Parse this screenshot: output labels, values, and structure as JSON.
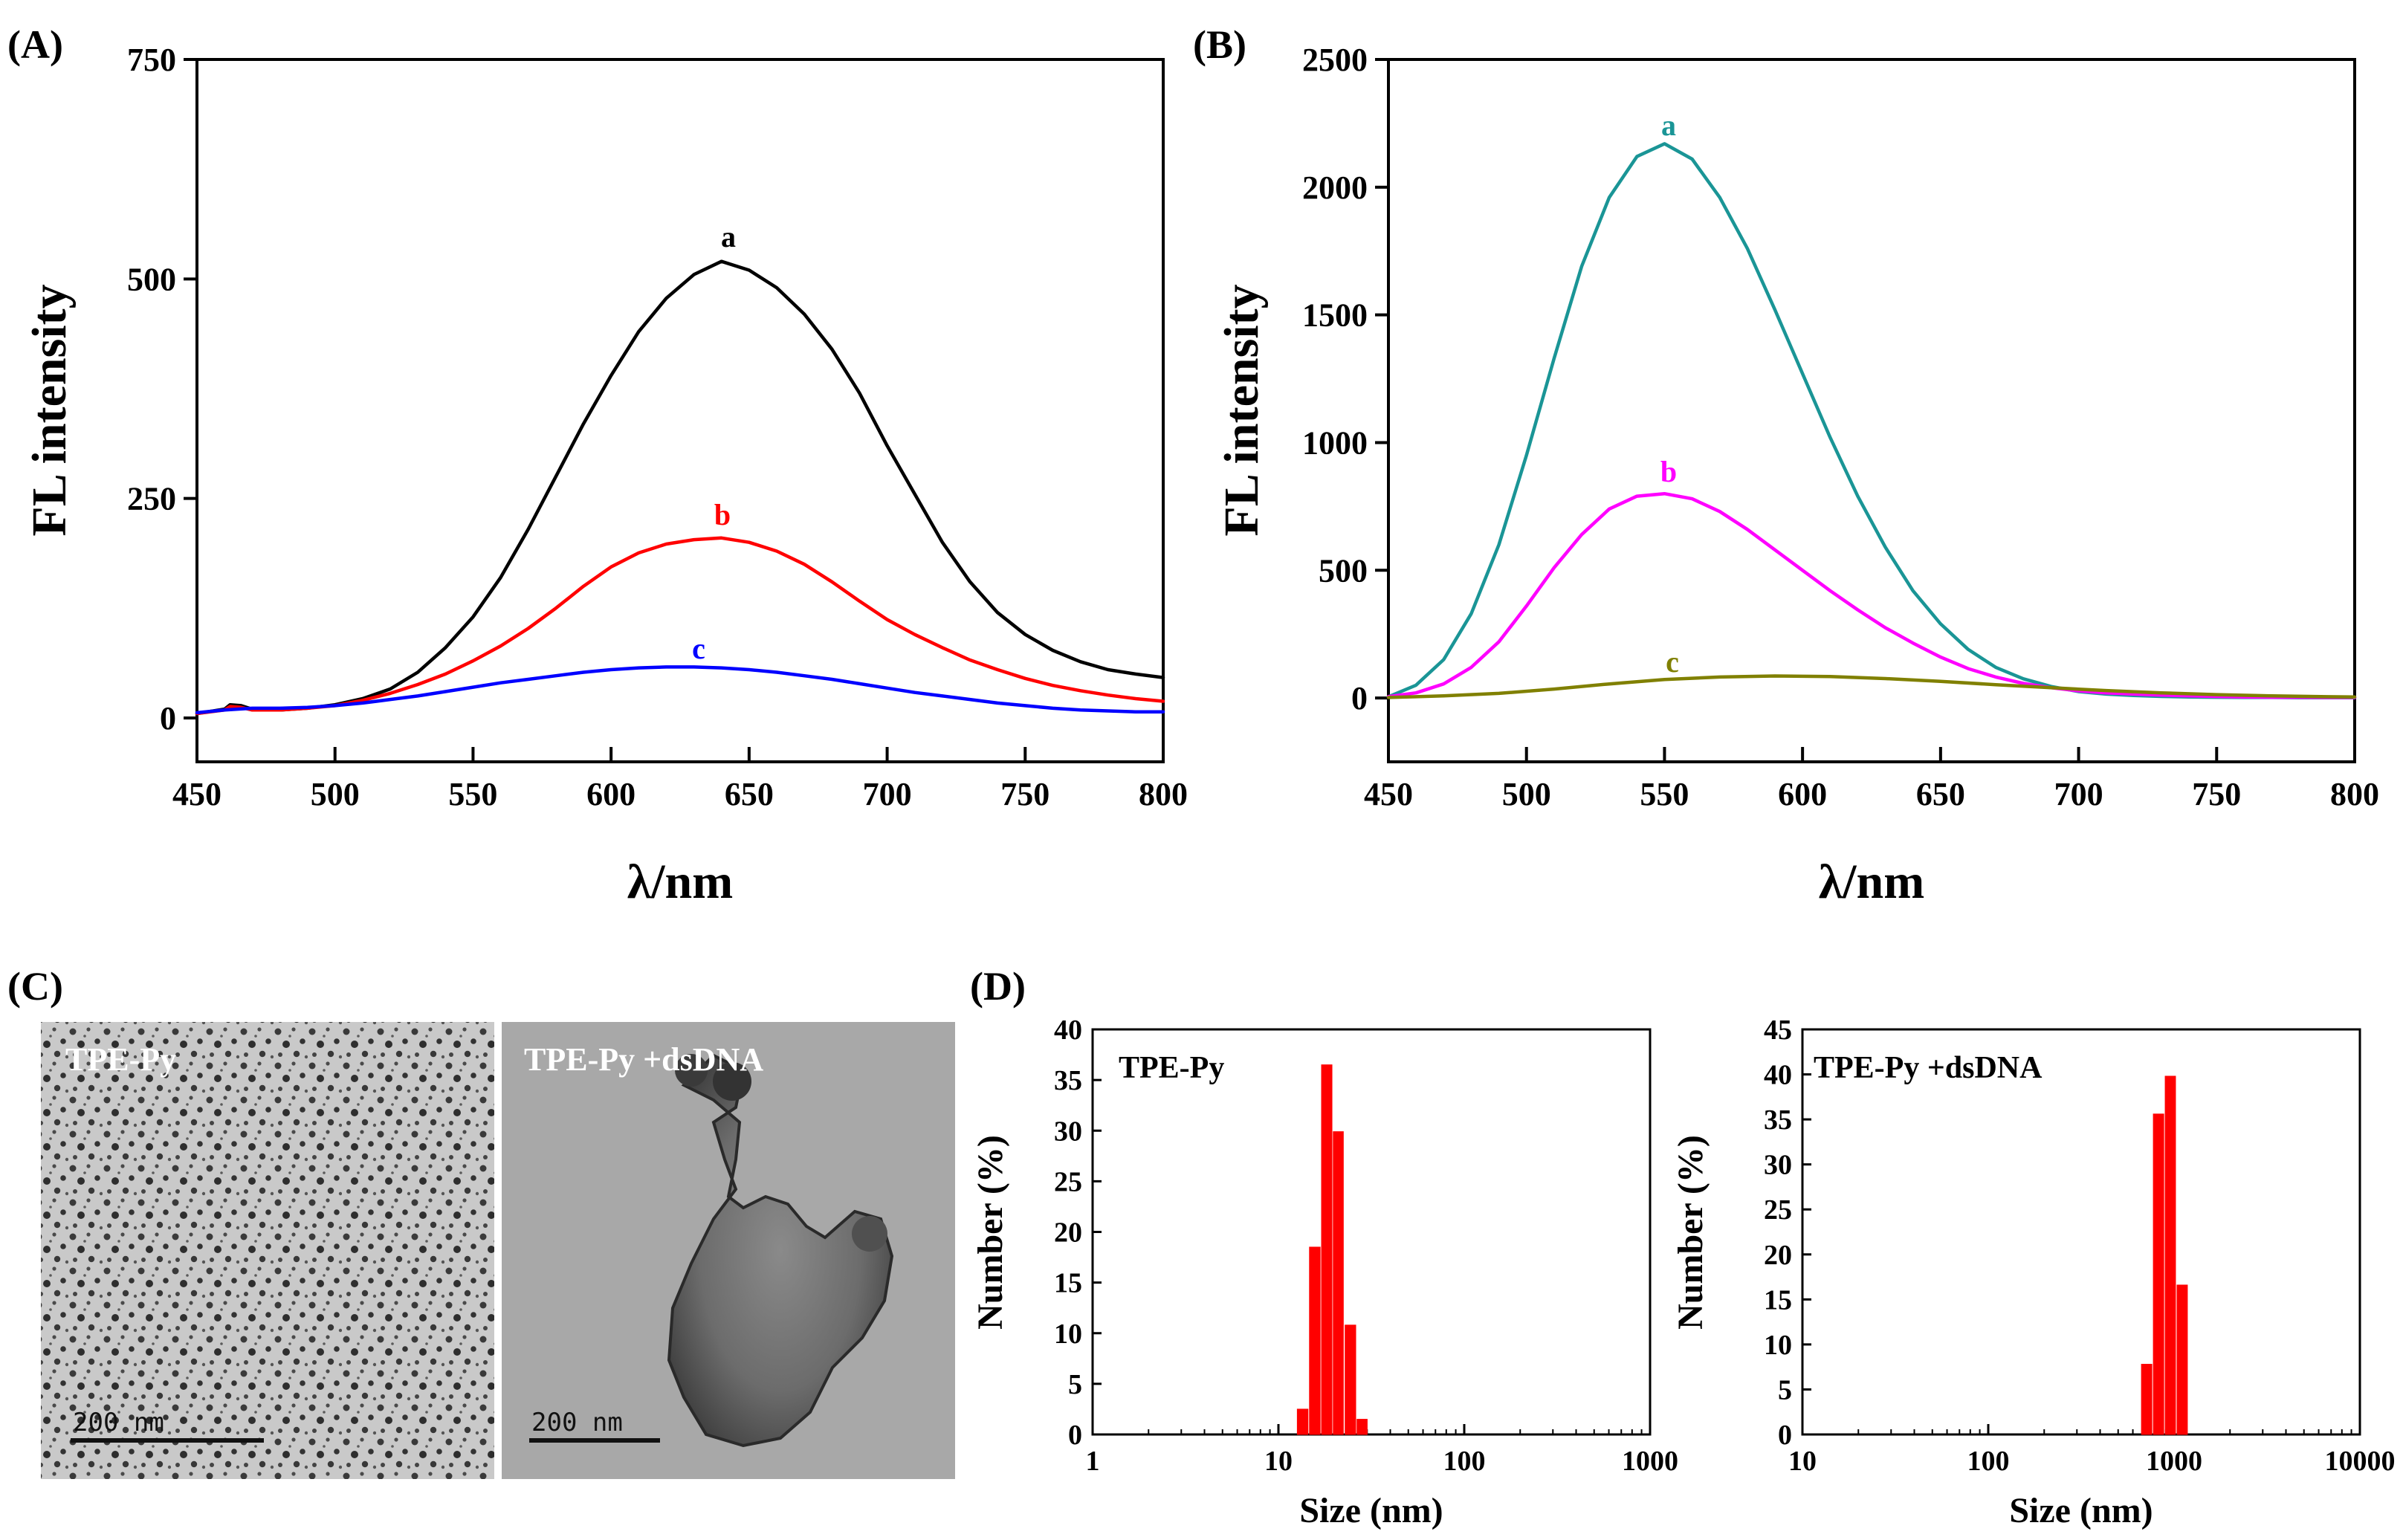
{
  "chart_data": [
    {
      "id": "A",
      "type": "line",
      "panel_label": "(A)",
      "xlabel": "λ/nm",
      "ylabel": "FL intensity",
      "xlim": [
        450,
        800
      ],
      "ylim": [
        -50,
        750
      ],
      "xticks": [
        450,
        500,
        550,
        600,
        650,
        700,
        750,
        800
      ],
      "yticks": [
        0,
        250,
        500,
        750
      ],
      "grid": false,
      "series": [
        {
          "name": "a",
          "color": "#000000",
          "x": [
            450,
            460,
            462,
            466,
            470,
            480,
            490,
            500,
            510,
            520,
            530,
            540,
            550,
            560,
            570,
            580,
            590,
            600,
            610,
            620,
            630,
            640,
            650,
            660,
            670,
            680,
            690,
            700,
            710,
            720,
            730,
            740,
            750,
            760,
            770,
            780,
            790,
            800
          ],
          "y": [
            5,
            10,
            15,
            14,
            10,
            9,
            11,
            15,
            22,
            33,
            52,
            80,
            115,
            160,
            215,
            275,
            335,
            390,
            440,
            478,
            505,
            520,
            510,
            490,
            460,
            420,
            370,
            310,
            255,
            200,
            155,
            120,
            95,
            77,
            64,
            55,
            50,
            46
          ]
        },
        {
          "name": "b",
          "color": "#ff0000",
          "x": [
            450,
            460,
            462,
            466,
            470,
            480,
            490,
            500,
            510,
            520,
            530,
            540,
            550,
            560,
            570,
            580,
            590,
            600,
            610,
            620,
            630,
            640,
            650,
            660,
            670,
            680,
            690,
            700,
            710,
            720,
            730,
            740,
            750,
            760,
            770,
            780,
            790,
            800
          ],
          "y": [
            5,
            9,
            13,
            12,
            9,
            9,
            11,
            14,
            20,
            28,
            38,
            50,
            65,
            82,
            102,
            125,
            150,
            172,
            188,
            198,
            203,
            205,
            200,
            190,
            175,
            155,
            133,
            112,
            95,
            80,
            66,
            55,
            45,
            37,
            31,
            26,
            22,
            19
          ]
        },
        {
          "name": "c",
          "color": "#0000ff",
          "x": [
            450,
            460,
            470,
            480,
            490,
            500,
            510,
            520,
            530,
            540,
            550,
            560,
            570,
            580,
            590,
            600,
            610,
            620,
            630,
            640,
            650,
            660,
            670,
            680,
            690,
            700,
            710,
            720,
            730,
            740,
            750,
            760,
            770,
            780,
            790,
            800
          ],
          "y": [
            6,
            9,
            11,
            11,
            12,
            14,
            17,
            21,
            25,
            30,
            35,
            40,
            44,
            48,
            52,
            55,
            57,
            58,
            58,
            57,
            55,
            52,
            48,
            44,
            39,
            34,
            29,
            25,
            21,
            17,
            14,
            11,
            9,
            8,
            7,
            7
          ]
        }
      ]
    },
    {
      "id": "B",
      "type": "line",
      "panel_label": "(B)",
      "xlabel": "λ/nm",
      "ylabel": "FL intensity",
      "xlim": [
        450,
        800
      ],
      "ylim": [
        -250,
        2500
      ],
      "xticks": [
        450,
        500,
        550,
        600,
        650,
        700,
        750,
        800
      ],
      "yticks": [
        0,
        500,
        1000,
        1500,
        2000,
        2500
      ],
      "grid": false,
      "series": [
        {
          "name": "a",
          "color": "#1a9596",
          "x": [
            450,
            460,
            470,
            480,
            490,
            500,
            510,
            520,
            530,
            540,
            550,
            560,
            570,
            580,
            590,
            600,
            610,
            620,
            630,
            640,
            650,
            660,
            670,
            680,
            690,
            700,
            710,
            720,
            730,
            740,
            750,
            760,
            770,
            780,
            790,
            800
          ],
          "y": [
            5,
            50,
            150,
            330,
            600,
            950,
            1330,
            1690,
            1960,
            2120,
            2170,
            2110,
            1960,
            1760,
            1520,
            1270,
            1020,
            790,
            590,
            420,
            290,
            190,
            120,
            75,
            45,
            25,
            15,
            10,
            6,
            4,
            3,
            2,
            2,
            1,
            1,
            1
          ]
        },
        {
          "name": "b",
          "color": "#ff00ff",
          "x": [
            450,
            460,
            470,
            480,
            490,
            500,
            510,
            520,
            530,
            540,
            550,
            560,
            570,
            580,
            590,
            600,
            610,
            620,
            630,
            640,
            650,
            660,
            670,
            680,
            690,
            700,
            710,
            720,
            730,
            740,
            750,
            760,
            770,
            780,
            790,
            800
          ],
          "y": [
            5,
            20,
            55,
            120,
            220,
            360,
            510,
            640,
            740,
            790,
            800,
            780,
            730,
            660,
            580,
            500,
            420,
            345,
            275,
            215,
            160,
            115,
            82,
            57,
            40,
            28,
            20,
            15,
            11,
            8,
            6,
            4,
            3,
            3,
            2,
            2
          ]
        },
        {
          "name": "c",
          "color": "#808000",
          "x": [
            450,
            470,
            490,
            510,
            530,
            550,
            570,
            590,
            610,
            630,
            650,
            670,
            690,
            710,
            730,
            750,
            770,
            790,
            800
          ],
          "y": [
            2,
            8,
            18,
            35,
            55,
            72,
            82,
            86,
            84,
            76,
            65,
            52,
            40,
            29,
            20,
            13,
            8,
            5,
            4
          ]
        }
      ]
    },
    {
      "id": "D1",
      "type": "bar",
      "panel_label": "(D)",
      "inset_label": "TPE-Py",
      "xlabel": "Size (nm)",
      "ylabel": "Number (%)",
      "xscale": "log",
      "xlim": [
        1,
        1000
      ],
      "ylim": [
        0,
        40
      ],
      "xticks": [
        1,
        10,
        100,
        1000
      ],
      "yticks": [
        0,
        5,
        10,
        15,
        20,
        25,
        30,
        35,
        40
      ],
      "bars": [
        {
          "size": 13.5,
          "value": 2.5
        },
        {
          "size": 15.7,
          "value": 18.5
        },
        {
          "size": 18.2,
          "value": 36.5
        },
        {
          "size": 21.0,
          "value": 29.9
        },
        {
          "size": 24.4,
          "value": 10.8
        },
        {
          "size": 28.2,
          "value": 1.5
        }
      ]
    },
    {
      "id": "D2",
      "type": "bar",
      "inset_label": "TPE-Py +dsDNA",
      "xlabel": "Size (nm)",
      "ylabel": "Number (%)",
      "xscale": "log",
      "xlim": [
        10,
        10000
      ],
      "ylim": [
        0,
        45
      ],
      "xticks": [
        10,
        100,
        1000,
        10000
      ],
      "yticks": [
        0,
        5,
        10,
        15,
        20,
        25,
        30,
        35,
        40,
        45
      ],
      "bars": [
        {
          "size": 712,
          "value": 7.8
        },
        {
          "size": 825,
          "value": 35.6
        },
        {
          "size": 955,
          "value": 39.8
        },
        {
          "size": 1106,
          "value": 16.6
        }
      ]
    }
  ],
  "panel_c": {
    "panel_label": "(C)",
    "left_label": "TPE-Py",
    "right_label": "TPE-Py +dsDNA",
    "left_scale": "200 nm",
    "right_scale": "200 nm"
  }
}
